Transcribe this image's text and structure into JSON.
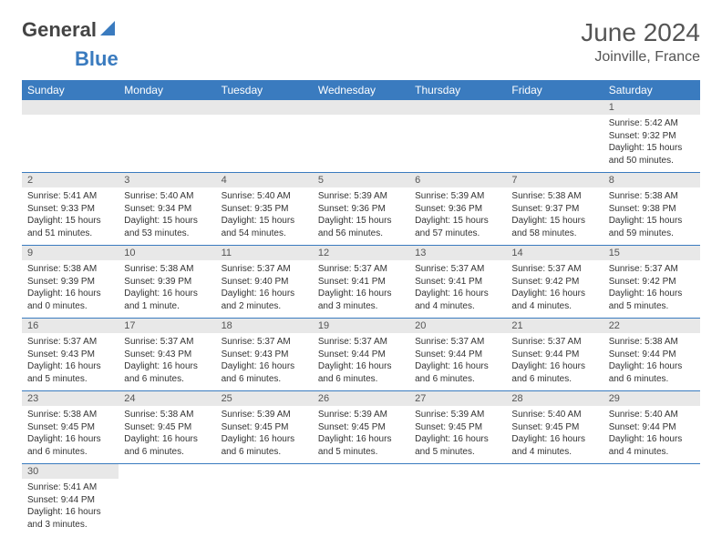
{
  "logo": {
    "part1": "General",
    "part2": "Blue"
  },
  "header": {
    "month": "June 2024",
    "location": "Joinville, France"
  },
  "colors": {
    "accent": "#3a7bbf",
    "headerText": "#ffffff",
    "dayBg": "#e8e8e8",
    "text": "#333333"
  },
  "dayNames": [
    "Sunday",
    "Monday",
    "Tuesday",
    "Wednesday",
    "Thursday",
    "Friday",
    "Saturday"
  ],
  "weeks": [
    [
      null,
      null,
      null,
      null,
      null,
      null,
      {
        "n": "1",
        "sr": "Sunrise: 5:42 AM",
        "ss": "Sunset: 9:32 PM",
        "d1": "Daylight: 15 hours",
        "d2": "and 50 minutes."
      }
    ],
    [
      {
        "n": "2",
        "sr": "Sunrise: 5:41 AM",
        "ss": "Sunset: 9:33 PM",
        "d1": "Daylight: 15 hours",
        "d2": "and 51 minutes."
      },
      {
        "n": "3",
        "sr": "Sunrise: 5:40 AM",
        "ss": "Sunset: 9:34 PM",
        "d1": "Daylight: 15 hours",
        "d2": "and 53 minutes."
      },
      {
        "n": "4",
        "sr": "Sunrise: 5:40 AM",
        "ss": "Sunset: 9:35 PM",
        "d1": "Daylight: 15 hours",
        "d2": "and 54 minutes."
      },
      {
        "n": "5",
        "sr": "Sunrise: 5:39 AM",
        "ss": "Sunset: 9:36 PM",
        "d1": "Daylight: 15 hours",
        "d2": "and 56 minutes."
      },
      {
        "n": "6",
        "sr": "Sunrise: 5:39 AM",
        "ss": "Sunset: 9:36 PM",
        "d1": "Daylight: 15 hours",
        "d2": "and 57 minutes."
      },
      {
        "n": "7",
        "sr": "Sunrise: 5:38 AM",
        "ss": "Sunset: 9:37 PM",
        "d1": "Daylight: 15 hours",
        "d2": "and 58 minutes."
      },
      {
        "n": "8",
        "sr": "Sunrise: 5:38 AM",
        "ss": "Sunset: 9:38 PM",
        "d1": "Daylight: 15 hours",
        "d2": "and 59 minutes."
      }
    ],
    [
      {
        "n": "9",
        "sr": "Sunrise: 5:38 AM",
        "ss": "Sunset: 9:39 PM",
        "d1": "Daylight: 16 hours",
        "d2": "and 0 minutes."
      },
      {
        "n": "10",
        "sr": "Sunrise: 5:38 AM",
        "ss": "Sunset: 9:39 PM",
        "d1": "Daylight: 16 hours",
        "d2": "and 1 minute."
      },
      {
        "n": "11",
        "sr": "Sunrise: 5:37 AM",
        "ss": "Sunset: 9:40 PM",
        "d1": "Daylight: 16 hours",
        "d2": "and 2 minutes."
      },
      {
        "n": "12",
        "sr": "Sunrise: 5:37 AM",
        "ss": "Sunset: 9:41 PM",
        "d1": "Daylight: 16 hours",
        "d2": "and 3 minutes."
      },
      {
        "n": "13",
        "sr": "Sunrise: 5:37 AM",
        "ss": "Sunset: 9:41 PM",
        "d1": "Daylight: 16 hours",
        "d2": "and 4 minutes."
      },
      {
        "n": "14",
        "sr": "Sunrise: 5:37 AM",
        "ss": "Sunset: 9:42 PM",
        "d1": "Daylight: 16 hours",
        "d2": "and 4 minutes."
      },
      {
        "n": "15",
        "sr": "Sunrise: 5:37 AM",
        "ss": "Sunset: 9:42 PM",
        "d1": "Daylight: 16 hours",
        "d2": "and 5 minutes."
      }
    ],
    [
      {
        "n": "16",
        "sr": "Sunrise: 5:37 AM",
        "ss": "Sunset: 9:43 PM",
        "d1": "Daylight: 16 hours",
        "d2": "and 5 minutes."
      },
      {
        "n": "17",
        "sr": "Sunrise: 5:37 AM",
        "ss": "Sunset: 9:43 PM",
        "d1": "Daylight: 16 hours",
        "d2": "and 6 minutes."
      },
      {
        "n": "18",
        "sr": "Sunrise: 5:37 AM",
        "ss": "Sunset: 9:43 PM",
        "d1": "Daylight: 16 hours",
        "d2": "and 6 minutes."
      },
      {
        "n": "19",
        "sr": "Sunrise: 5:37 AM",
        "ss": "Sunset: 9:44 PM",
        "d1": "Daylight: 16 hours",
        "d2": "and 6 minutes."
      },
      {
        "n": "20",
        "sr": "Sunrise: 5:37 AM",
        "ss": "Sunset: 9:44 PM",
        "d1": "Daylight: 16 hours",
        "d2": "and 6 minutes."
      },
      {
        "n": "21",
        "sr": "Sunrise: 5:37 AM",
        "ss": "Sunset: 9:44 PM",
        "d1": "Daylight: 16 hours",
        "d2": "and 6 minutes."
      },
      {
        "n": "22",
        "sr": "Sunrise: 5:38 AM",
        "ss": "Sunset: 9:44 PM",
        "d1": "Daylight: 16 hours",
        "d2": "and 6 minutes."
      }
    ],
    [
      {
        "n": "23",
        "sr": "Sunrise: 5:38 AM",
        "ss": "Sunset: 9:45 PM",
        "d1": "Daylight: 16 hours",
        "d2": "and 6 minutes."
      },
      {
        "n": "24",
        "sr": "Sunrise: 5:38 AM",
        "ss": "Sunset: 9:45 PM",
        "d1": "Daylight: 16 hours",
        "d2": "and 6 minutes."
      },
      {
        "n": "25",
        "sr": "Sunrise: 5:39 AM",
        "ss": "Sunset: 9:45 PM",
        "d1": "Daylight: 16 hours",
        "d2": "and 6 minutes."
      },
      {
        "n": "26",
        "sr": "Sunrise: 5:39 AM",
        "ss": "Sunset: 9:45 PM",
        "d1": "Daylight: 16 hours",
        "d2": "and 5 minutes."
      },
      {
        "n": "27",
        "sr": "Sunrise: 5:39 AM",
        "ss": "Sunset: 9:45 PM",
        "d1": "Daylight: 16 hours",
        "d2": "and 5 minutes."
      },
      {
        "n": "28",
        "sr": "Sunrise: 5:40 AM",
        "ss": "Sunset: 9:45 PM",
        "d1": "Daylight: 16 hours",
        "d2": "and 4 minutes."
      },
      {
        "n": "29",
        "sr": "Sunrise: 5:40 AM",
        "ss": "Sunset: 9:44 PM",
        "d1": "Daylight: 16 hours",
        "d2": "and 4 minutes."
      }
    ],
    [
      {
        "n": "30",
        "sr": "Sunrise: 5:41 AM",
        "ss": "Sunset: 9:44 PM",
        "d1": "Daylight: 16 hours",
        "d2": "and 3 minutes."
      },
      null,
      null,
      null,
      null,
      null,
      null
    ]
  ]
}
